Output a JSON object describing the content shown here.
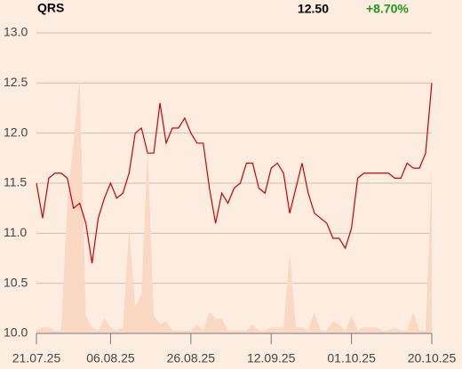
{
  "header": {
    "symbol": "QRS",
    "price": "12.50",
    "change": "+8.70%"
  },
  "chart_data": {
    "type": "line",
    "categories": [
      "21.07.25",
      null,
      null,
      null,
      null,
      null,
      null,
      null,
      null,
      null,
      null,
      null,
      "06.08.25",
      null,
      null,
      null,
      null,
      null,
      null,
      null,
      null,
      null,
      null,
      null,
      null,
      "26.08.25",
      null,
      null,
      null,
      null,
      null,
      null,
      null,
      null,
      null,
      null,
      null,
      null,
      "12.09.25",
      null,
      null,
      null,
      null,
      null,
      null,
      null,
      null,
      null,
      null,
      null,
      null,
      "01.10.25",
      null,
      null,
      null,
      null,
      null,
      null,
      null,
      null,
      null,
      null,
      null,
      null,
      "20.10.25"
    ],
    "series": [
      {
        "color": "#cc0000",
        "values": [
          11.5,
          11.15,
          11.55,
          11.6,
          11.6,
          11.55,
          11.25,
          11.3,
          11.1,
          10.7,
          11.15,
          11.35,
          11.5,
          11.35,
          11.4,
          11.6,
          12.0,
          12.05,
          11.8,
          11.8,
          12.3,
          11.9,
          12.05,
          12.05,
          12.15,
          12.0,
          11.9,
          11.9,
          11.45,
          11.1,
          11.4,
          11.3,
          11.45,
          11.5,
          11.7,
          11.7,
          11.45,
          11.4,
          11.65,
          11.7,
          11.6,
          11.2,
          11.45,
          11.7,
          11.4,
          11.2,
          11.15,
          11.1,
          10.95,
          10.95,
          10.85,
          11.05,
          11.55,
          11.6,
          11.6,
          11.6,
          11.6,
          11.6,
          11.55,
          11.55,
          11.7,
          11.65,
          11.65,
          11.8,
          12.5
        ]
      },
      {
        "color": "#f9d9c3",
        "axis": "y2",
        "values": [
          1,
          2,
          2,
          1,
          1,
          43,
          64,
          85,
          6,
          2,
          1,
          5,
          2,
          1,
          2,
          35,
          9,
          13,
          61,
          6,
          3,
          4,
          1,
          1,
          1,
          1,
          3,
          1,
          7,
          5,
          5,
          1,
          1,
          1,
          1,
          3,
          1,
          1,
          2,
          2,
          2,
          27,
          2,
          2,
          1,
          7,
          1,
          1,
          4,
          3,
          1,
          6,
          1,
          2,
          2,
          2,
          1,
          1,
          2,
          1,
          1,
          7,
          1,
          1,
          55
        ]
      }
    ],
    "ylim": [
      10,
      13
    ],
    "yticks": [
      {
        "value": 10,
        "label": "10.0"
      },
      10.5,
      {
        "value": 11,
        "label": "11.0"
      },
      11.5,
      {
        "value": 12,
        "label": "12.0"
      },
      12.5,
      {
        "value": 13,
        "label": "13.0"
      }
    ],
    "y2lim": [
      0,
      100
    ],
    "grid": true
  }
}
